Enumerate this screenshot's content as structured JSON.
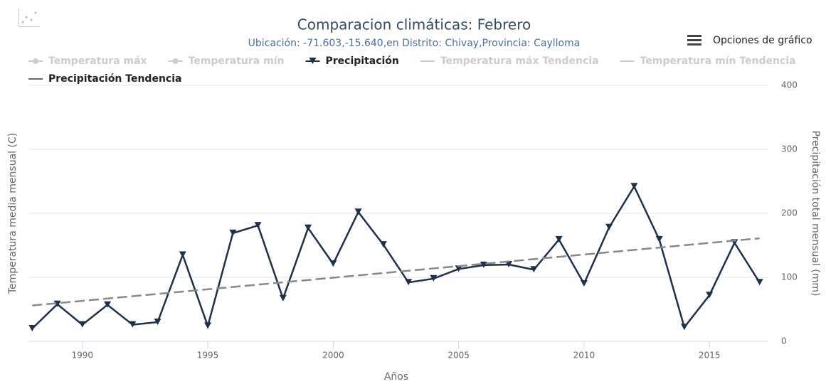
{
  "chart_data": {
    "type": "line",
    "title": "Comparacion climáticas: Febrero",
    "subtitle": "Ubicación: -71.603,-15.640,en Distrito: Chivay,Provincia: Caylloma",
    "menu_label": "Opciones de gráfico",
    "x_label": "Años",
    "y_label": "Temperatura media mensual (C)",
    "y2_label": "Precipitación total mensual (mm)",
    "xlim": [
      1987.85,
      2017.35
    ],
    "xticks": [
      1990,
      1995,
      2000,
      2005,
      2010,
      2015
    ],
    "y2lim": [
      0,
      400
    ],
    "y2ticks": [
      0,
      100,
      200,
      300,
      400
    ],
    "grid": true,
    "legend": "top",
    "series": [
      {
        "name": "Temperatura máx",
        "color": "#cccccc",
        "marker": "circle",
        "visible": false
      },
      {
        "name": "Temperatura mín",
        "color": "#cccccc",
        "marker": "circle",
        "visible": false
      },
      {
        "name": "Precipitación",
        "color": "#1f3048",
        "marker": "triangle-down",
        "axis": "y2",
        "visible": true,
        "x": [
          1988,
          1989,
          1990,
          1991,
          1992,
          1993,
          1994,
          1995,
          1996,
          1997,
          1998,
          1999,
          2000,
          2001,
          2002,
          2003,
          2004,
          2005,
          2006,
          2007,
          2008,
          2009,
          2010,
          2011,
          2012,
          2013,
          2014,
          2015,
          2016,
          2017
        ],
        "values": [
          20,
          58,
          26,
          57,
          26,
          30,
          135,
          24,
          169,
          181,
          67,
          177,
          121,
          202,
          151,
          92,
          98,
          113,
          119,
          120,
          112,
          159,
          90,
          178,
          242,
          159,
          22,
          72,
          154,
          92
        ]
      },
      {
        "name": "Temperatura máx Tendencia",
        "color": "#cccccc",
        "visible": false
      },
      {
        "name": "Temperatura mín Tendencia",
        "color": "#cccccc",
        "visible": false
      },
      {
        "name": "Precipitación Tendencia",
        "color": "#888888",
        "dashed": true,
        "axis": "y2",
        "visible": true,
        "x": [
          1988,
          2017
        ],
        "values": [
          56,
          161
        ]
      }
    ]
  }
}
